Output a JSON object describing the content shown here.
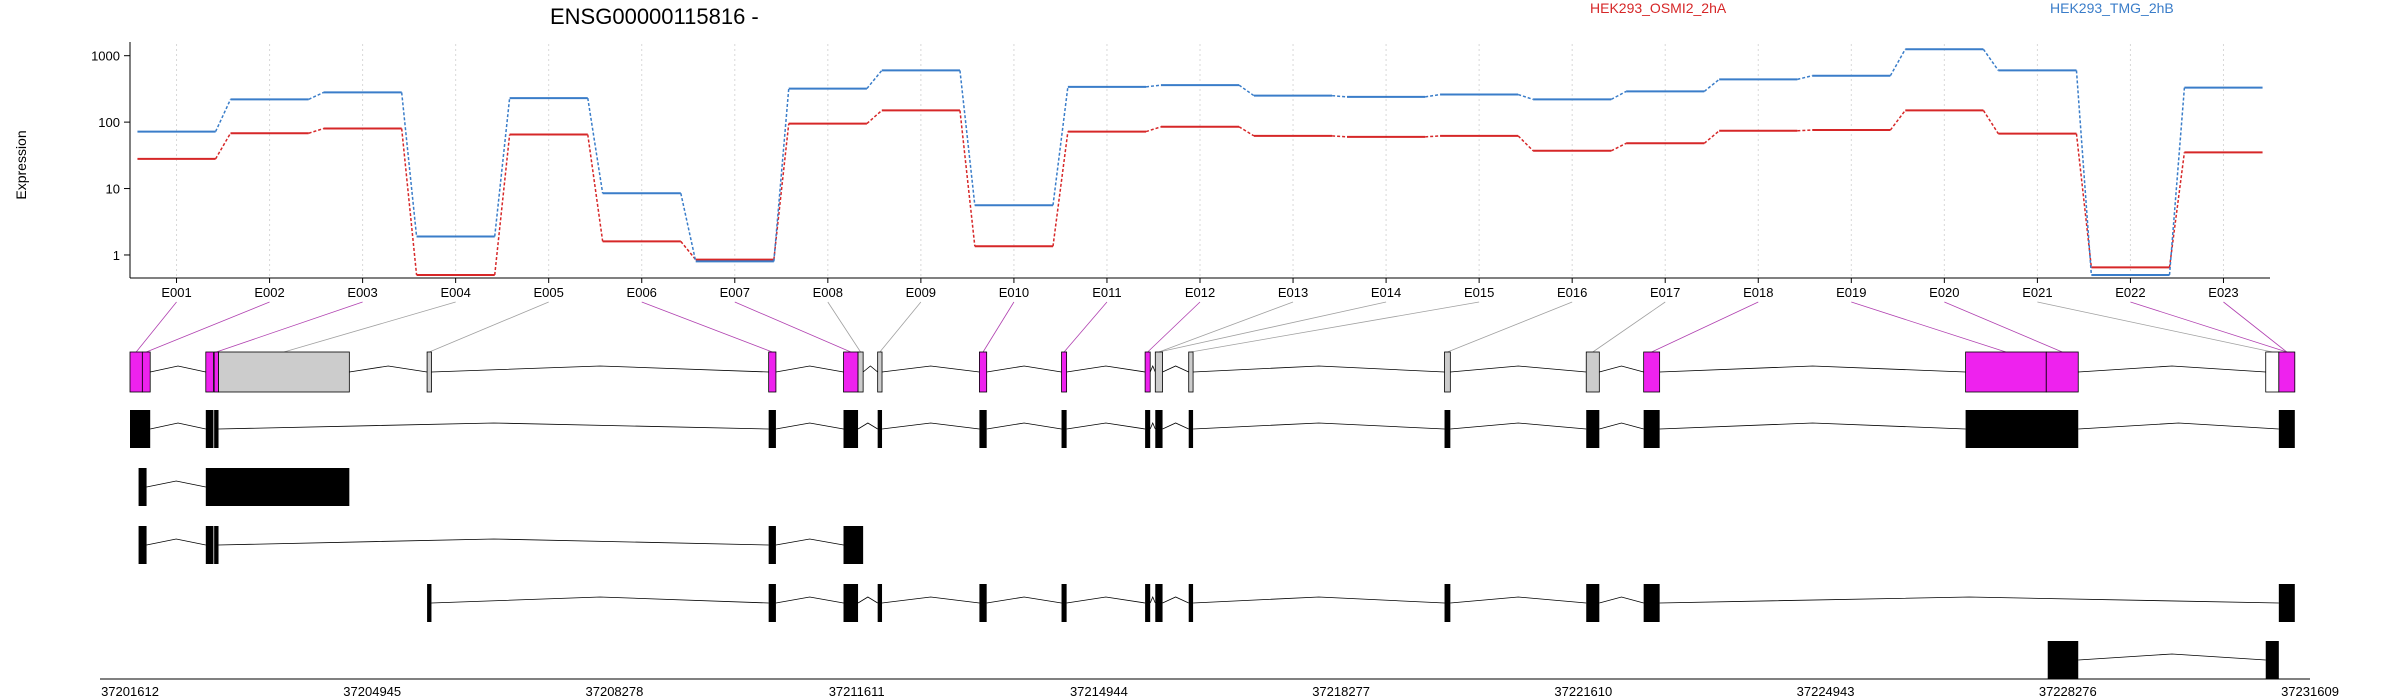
{
  "chart_data": {
    "type": "line",
    "title": "ENSG00000115816 -",
    "ylabel": "Expression",
    "xlabel": "",
    "y_scale": "log",
    "ylim": [
      0.45,
      1500
    ],
    "y_ticks": [
      1,
      10,
      100,
      1000
    ],
    "y_tick_labels": [
      "1",
      "10",
      "100",
      "1000"
    ],
    "grid": "vertical, dotted",
    "legend_placement": "top",
    "categories": [
      "E001",
      "E002",
      "E003",
      "E004",
      "E005",
      "E006",
      "E007",
      "E008",
      "E009",
      "E010",
      "E011",
      "E012",
      "E013",
      "E014",
      "E015",
      "E016",
      "E017",
      "E018",
      "E019",
      "E020",
      "E021",
      "E022",
      "E023"
    ],
    "series": [
      {
        "name": "HEK293_OSMI2_2hA",
        "color": "#d62728",
        "values": [
          28,
          68,
          80,
          0.5,
          65,
          1.6,
          0.85,
          95,
          150,
          1.35,
          72,
          85,
          62,
          60,
          62,
          37,
          48,
          74,
          76,
          150,
          67,
          0.65,
          35
        ]
      },
      {
        "name": "HEK293_TMG_2hB",
        "color": "#3a7dc9",
        "values": [
          72,
          220,
          280,
          1.9,
          230,
          8.5,
          0.8,
          320,
          600,
          5.6,
          340,
          360,
          250,
          240,
          260,
          220,
          290,
          440,
          500,
          1250,
          600,
          0.5,
          330
        ]
      }
    ],
    "genomic_axis": {
      "tick_labels": [
        "37201612",
        "37204945",
        "37208278",
        "37211611",
        "37214944",
        "37218277",
        "37221610",
        "37224943",
        "37228276",
        "37231609"
      ]
    },
    "exon_colors": {
      "significant": "#ee22ee",
      "other": "#cccccc",
      "transcript": "#000000"
    }
  }
}
